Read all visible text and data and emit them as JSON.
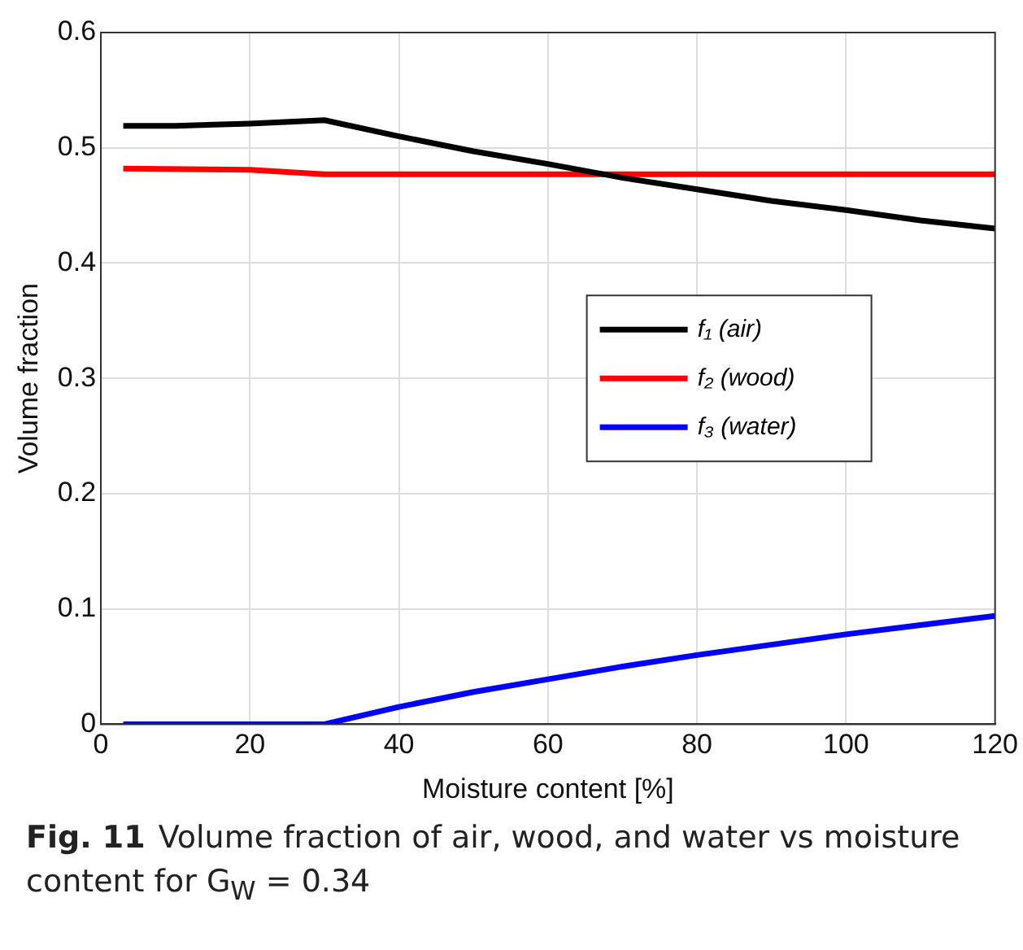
{
  "chart_data": {
    "type": "line",
    "xlabel": "Moisture content [%]",
    "ylabel": "Volume fraction",
    "xlim": [
      0,
      120
    ],
    "xticks": [
      0,
      20,
      40,
      60,
      80,
      100,
      120
    ],
    "ylim": [
      0,
      0.6
    ],
    "yticks": [
      0,
      0.1,
      0.2,
      0.3,
      0.4,
      0.5,
      0.6
    ],
    "grid": true,
    "legend": "center right",
    "line_style": "solid",
    "marker": "none",
    "series": [
      {
        "name": "f₁ (air)",
        "color": "#000000",
        "x": [
          3,
          10,
          20,
          30,
          40,
          50,
          60,
          70,
          80,
          90,
          100,
          110,
          120
        ],
        "values": [
          0.519,
          0.519,
          0.521,
          0.524,
          0.51,
          0.497,
          0.486,
          0.474,
          0.464,
          0.454,
          0.446,
          0.437,
          0.43
        ]
      },
      {
        "name": "f₂ (wood)",
        "color": "#ff0000",
        "x": [
          3,
          20,
          30,
          120
        ],
        "values": [
          0.482,
          0.481,
          0.477,
          0.477
        ]
      },
      {
        "name": "f₃ (water)",
        "color": "#0000ff",
        "x": [
          3,
          30,
          40,
          50,
          60,
          70,
          80,
          90,
          100,
          110,
          120
        ],
        "values": [
          0,
          0,
          0.015,
          0.028,
          0.039,
          0.05,
          0.06,
          0.069,
          0.078,
          0.086,
          0.094
        ]
      }
    ],
    "annotations": [
      "Fig. 11",
      "Volume fraction of air, wood, and water vs moisture content for G$_{W}$ = 0.34"
    ]
  }
}
